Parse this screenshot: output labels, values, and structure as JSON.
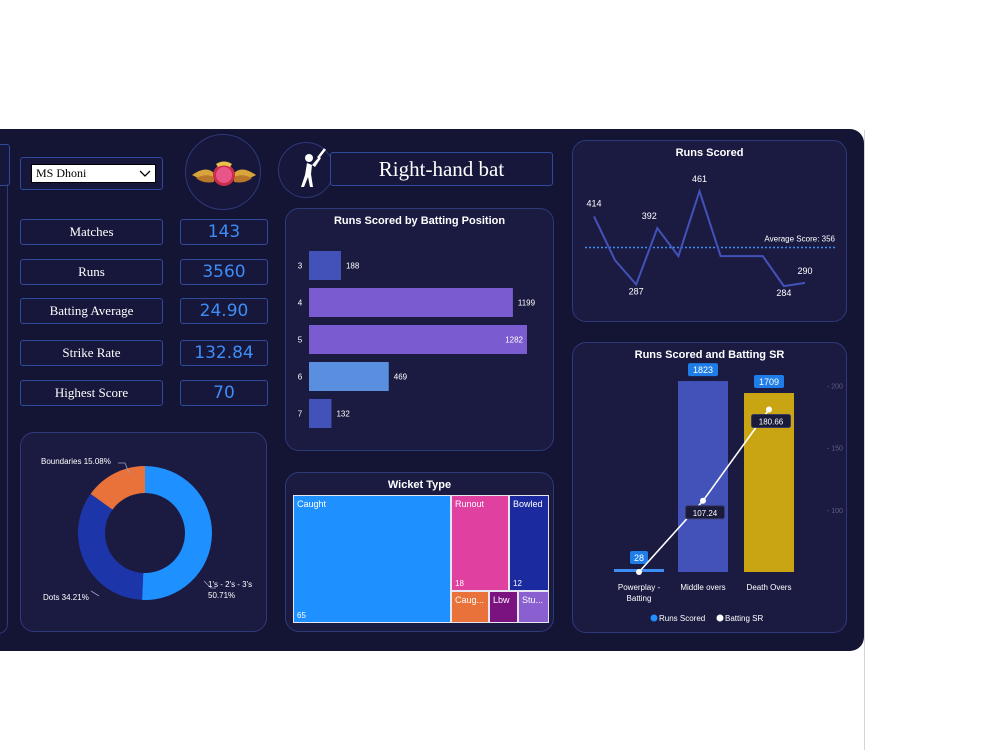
{
  "selector": {
    "value": "MS Dhoni"
  },
  "batting_style": "Right-hand bat",
  "metrics": [
    {
      "label": "Matches",
      "value": "143"
    },
    {
      "label": "Runs",
      "value": "3560"
    },
    {
      "label": "Batting Average",
      "value": "24.90"
    },
    {
      "label": "Strike Rate",
      "value": "132.84"
    },
    {
      "label": "Highest Score",
      "value": "70"
    }
  ],
  "colors": {
    "background": "#141434",
    "panel": "#1b1b42",
    "accent_blue": "#3d8df5",
    "bar_blue": "#4352b8",
    "bar_purple": "#7b5bd0",
    "gold": "#c9a514",
    "pie_light": "#1e90ff",
    "pie_dark": "#1c35a8",
    "pie_orange": "#e9713a"
  },
  "icons": [
    "team-logo-icon",
    "batsman-icon",
    "dropdown-chevron-icon"
  ],
  "chart_data": [
    {
      "id": "batting-position",
      "type": "bar",
      "orientation": "horizontal",
      "title": "Runs Scored by Batting Position",
      "categories": [
        "3",
        "4",
        "5",
        "6",
        "7"
      ],
      "values": [
        188,
        1199,
        1282,
        469,
        132
      ],
      "value_labels": [
        "188",
        "1199",
        "1282",
        "469",
        "132"
      ],
      "bar_colors": [
        "#4352b8",
        "#7b5bd0",
        "#7b5bd0",
        "#5a8fe0",
        "#4352b8"
      ]
    },
    {
      "id": "runs-scored",
      "type": "line",
      "title": "Runs Scored",
      "values": [
        414,
        332,
        287,
        392,
        340,
        461,
        340,
        340,
        340,
        284,
        290
      ],
      "point_labels": [
        {
          "index": 0,
          "text": "414"
        },
        {
          "index": 2,
          "text": "287"
        },
        {
          "index": 3,
          "text": "392"
        },
        {
          "index": 5,
          "text": "461"
        },
        {
          "index": 9,
          "text": "284"
        },
        {
          "index": 10,
          "text": "290"
        }
      ],
      "reference_line": {
        "value": 356,
        "label": "Average Score: 356"
      },
      "ylim": [
        260,
        480
      ]
    },
    {
      "id": "run-distribution",
      "type": "pie",
      "variant": "donut",
      "slices": [
        {
          "name": "1's - 2's - 3's",
          "value": 50.71,
          "label": "1's - 2's - 3's 50.71%",
          "color": "#1e90ff"
        },
        {
          "name": "Dots",
          "value": 34.21,
          "label": "Dots 34.21%",
          "color": "#1c35a8"
        },
        {
          "name": "Boundaries",
          "value": 15.08,
          "label": "Boundaries 15.08%",
          "color": "#e9713a"
        }
      ]
    },
    {
      "id": "wicket-type",
      "type": "treemap",
      "title": "Wicket Type",
      "items": [
        {
          "name": "Caught",
          "value": 65,
          "value_label": "65",
          "color": "#1e90ff"
        },
        {
          "name": "Runout",
          "value": 18,
          "value_label": "18",
          "color": "#e040a0"
        },
        {
          "name": "Bowled",
          "value": 12,
          "value_label": "12",
          "color": "#1c2aa0"
        },
        {
          "name": "Caug...",
          "value": 5,
          "value_label": "",
          "color": "#e9713a"
        },
        {
          "name": "Lbw",
          "value": 3,
          "value_label": "",
          "color": "#7a1280"
        },
        {
          "name": "Stu...",
          "value": 3,
          "value_label": "",
          "color": "#8a5fd0"
        }
      ]
    },
    {
      "id": "runs-and-sr",
      "type": "bar",
      "title": "Runs Scored and Batting SR",
      "categories": [
        "Powerplay - Batting",
        "Middle overs",
        "Death Overs"
      ],
      "series": [
        {
          "name": "Runs Scored",
          "type": "bar",
          "values": [
            28,
            1823,
            1709
          ],
          "value_labels": [
            "28",
            "1823",
            "1709"
          ],
          "colors": [
            "#3d8df5",
            "#4352b8",
            "#c9a514"
          ]
        },
        {
          "name": "Batting SR",
          "type": "line",
          "values": [
            50,
            107.24,
            180.66
          ],
          "value_labels": [
            "",
            "107.24",
            "180.66"
          ]
        }
      ],
      "legend": [
        "Runs Scored",
        "Batting SR"
      ],
      "secondary_ticks": [
        "200",
        "150",
        "100"
      ],
      "ylim": [
        0,
        1900
      ],
      "y2lim": [
        50,
        210
      ]
    }
  ]
}
